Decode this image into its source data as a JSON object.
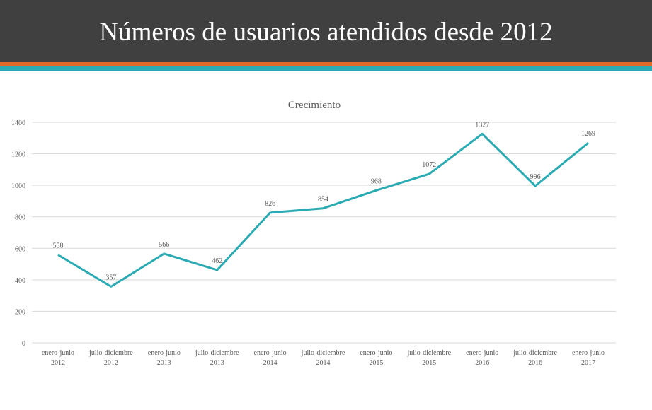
{
  "header": {
    "title": "Números de usuarios atendidos desde 2012"
  },
  "colors": {
    "header_bg": "#404040",
    "stripe_orange": "#E3692B",
    "stripe_teal": "#2AAAB3",
    "series_line": "#2AAAB3",
    "gridline": "#D9D9D9"
  },
  "chart_data": {
    "type": "line",
    "title": "Crecimiento",
    "xlabel": "",
    "ylabel": "",
    "ylim": [
      0,
      1400
    ],
    "yticks": [
      0,
      200,
      400,
      600,
      800,
      1000,
      1200,
      1400
    ],
    "grid": true,
    "legend": "none",
    "categories": [
      [
        "enero-junio",
        "2012"
      ],
      [
        "julio-diciembre",
        "2012"
      ],
      [
        "enero-junio",
        "2013"
      ],
      [
        "julio-diciembre",
        "2013"
      ],
      [
        "enero-junio",
        "2014"
      ],
      [
        "julio-diciembre",
        "2014"
      ],
      [
        "enero-junio",
        "2015"
      ],
      [
        "julio-diciembre",
        "2015"
      ],
      [
        "enero-junio",
        "2016"
      ],
      [
        "julio-diciembre",
        "2016"
      ],
      [
        "enero-junio",
        "2017"
      ]
    ],
    "series": [
      {
        "values": [
          558,
          357,
          566,
          462,
          826,
          854,
          968,
          1072,
          1327,
          996,
          1269
        ]
      }
    ]
  }
}
